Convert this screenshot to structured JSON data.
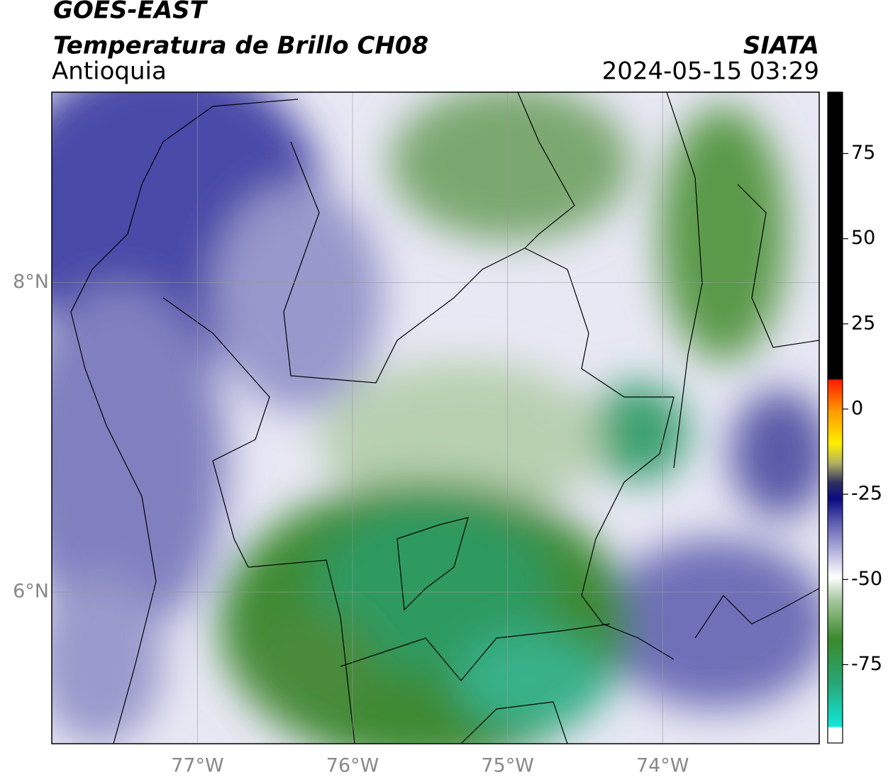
{
  "header": {
    "title": "GOES-EAST",
    "subtitle": "Temperatura de Brillo CH08",
    "region": "Antioquia",
    "source": "SIATA",
    "timestamp": "2024-05-15 03:29"
  },
  "map": {
    "xlim": [
      -77.94,
      -72.99
    ],
    "ylim": [
      5.02,
      9.23
    ],
    "xticks": [
      {
        "value": -77,
        "label": "77°W"
      },
      {
        "value": -76,
        "label": "76°W"
      },
      {
        "value": -75,
        "label": "75°W"
      },
      {
        "value": -74,
        "label": "74°W"
      }
    ],
    "yticks": [
      {
        "value": 6,
        "label": "6°N"
      },
      {
        "value": 8,
        "label": "8°N"
      }
    ]
  },
  "colorbar": {
    "lim": [
      -98,
      93
    ],
    "ticks": [
      75,
      50,
      25,
      0,
      -25,
      -50,
      -75
    ]
  }
}
